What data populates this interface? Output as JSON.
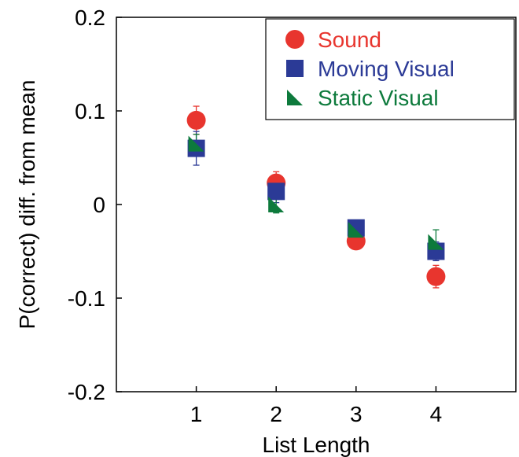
{
  "chart_data": {
    "type": "scatter",
    "title": "",
    "xlabel": "List Length",
    "ylabel": "P(correct) diff. from mean",
    "xlim": [
      0,
      5
    ],
    "ylim": [
      -0.2,
      0.2
    ],
    "x_ticks": [
      1,
      2,
      3,
      4
    ],
    "x_tick_labels": [
      "1",
      "2",
      "3",
      "4"
    ],
    "y_ticks": [
      0.2,
      0.1,
      0,
      -0.1,
      -0.2
    ],
    "y_tick_labels": [
      "0.2",
      "0.1",
      "0",
      "-0.1",
      "-0.2"
    ],
    "grid": false,
    "legend_position": "top-right",
    "series": [
      {
        "name": "Sound",
        "marker": "circle",
        "color": "#e8352e",
        "x": [
          1,
          2,
          3,
          4
        ],
        "y": [
          0.09,
          0.023,
          -0.039,
          -0.077
        ],
        "error": [
          0.015,
          0.012,
          0.0,
          0.012
        ]
      },
      {
        "name": "Moving Visual",
        "marker": "square",
        "color": "#2b3a96",
        "x": [
          1,
          2,
          3,
          4
        ],
        "y": [
          0.06,
          0.014,
          -0.025,
          -0.05
        ],
        "error": [
          0.018,
          0.012,
          0.0,
          0.01
        ]
      },
      {
        "name": "Static Visual",
        "marker": "triangle",
        "color": "#0d7a3c",
        "x": [
          1,
          2,
          3,
          4
        ],
        "y": [
          0.065,
          0.0,
          -0.027,
          -0.04
        ],
        "error": [
          0.01,
          0.009,
          0.0,
          0.013
        ]
      }
    ]
  }
}
